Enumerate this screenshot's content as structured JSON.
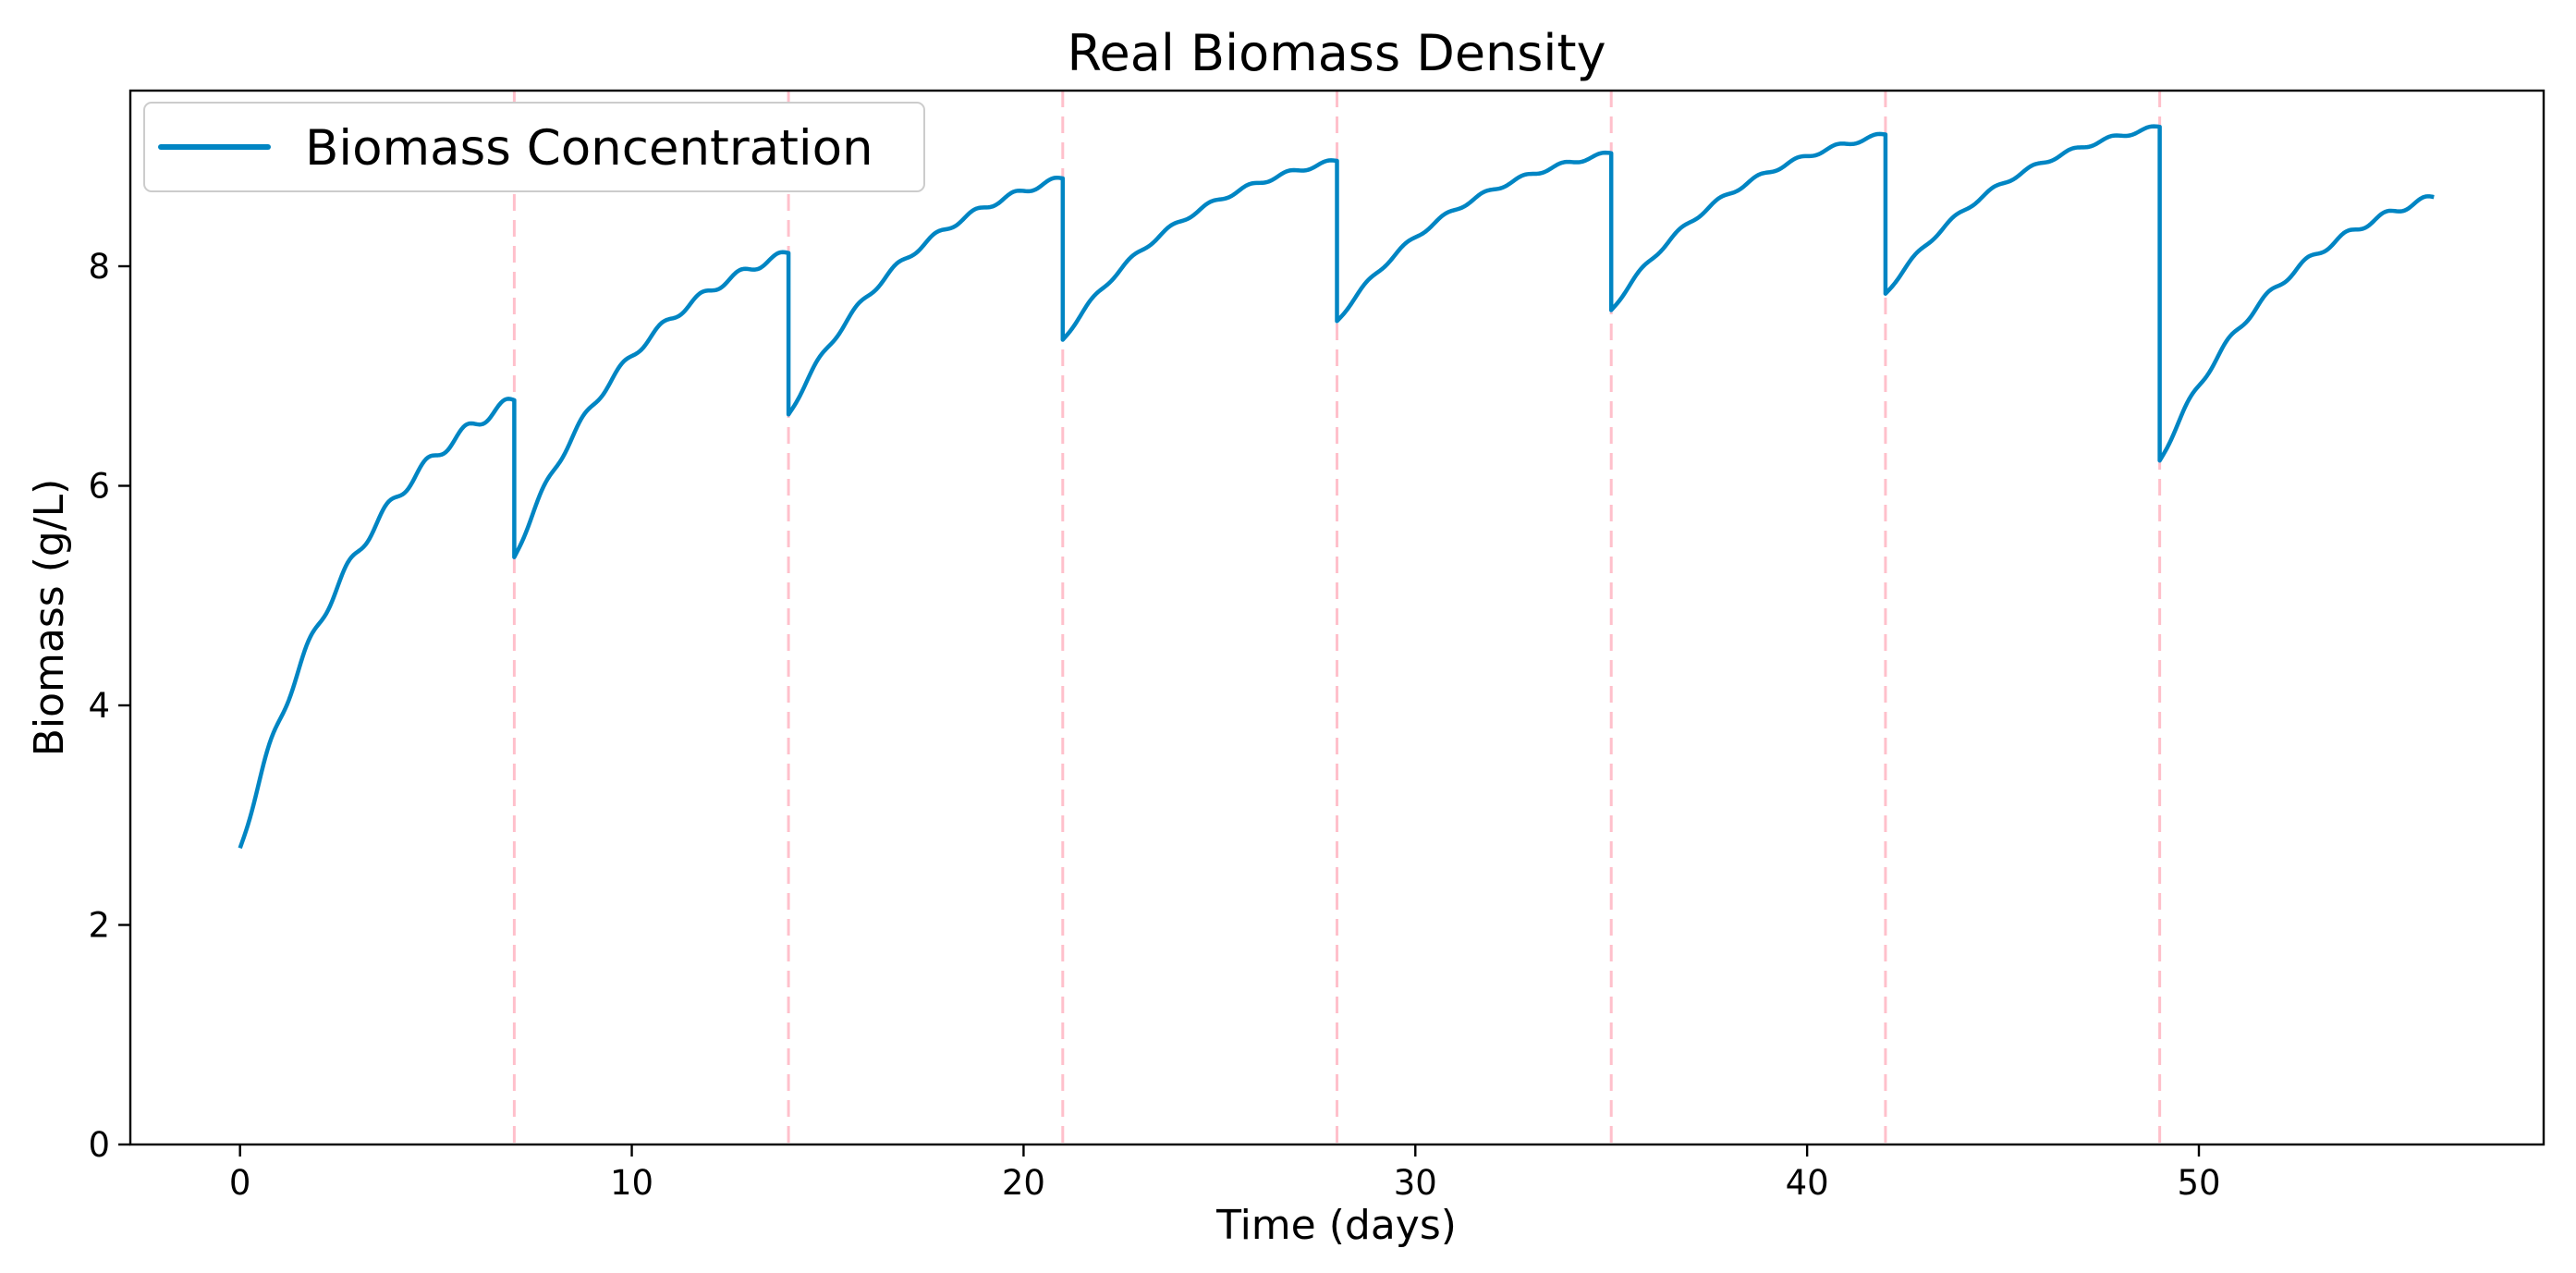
{
  "chart_data": {
    "type": "line",
    "title": "Real Biomass Density",
    "xlabel": "Time (days)",
    "ylabel": "Biomass (g/L)",
    "xlim": [
      -2.8,
      58.8
    ],
    "ylim": [
      0,
      9.6
    ],
    "xticks": [
      0,
      10,
      20,
      30,
      40,
      50
    ],
    "yticks": [
      0,
      2,
      4,
      6,
      8
    ],
    "grid": false,
    "legend_position": "top-left",
    "series": [
      {
        "name": "Biomass Concentration",
        "color": "#0085c3",
        "cycles": [
          {
            "start": 0,
            "end": 7,
            "y0": 2.7,
            "y1": 6.78
          },
          {
            "start": 7,
            "end": 14,
            "y0": 5.35,
            "y1": 8.12
          },
          {
            "start": 14,
            "end": 21,
            "y0": 6.65,
            "y1": 8.8
          },
          {
            "start": 21,
            "end": 28,
            "y0": 7.33,
            "y1": 8.96
          },
          {
            "start": 28,
            "end": 35,
            "y0": 7.5,
            "y1": 9.03
          },
          {
            "start": 35,
            "end": 42,
            "y0": 7.6,
            "y1": 9.2
          },
          {
            "start": 42,
            "end": 49,
            "y0": 7.75,
            "y1": 9.27
          },
          {
            "start": 49,
            "end": 56,
            "y0": 6.23,
            "y1": 8.63
          }
        ]
      }
    ],
    "harvest_markers": {
      "color": "#ffc0cb",
      "style": "dashed",
      "x": [
        7,
        14,
        21,
        28,
        35,
        42,
        49
      ]
    }
  }
}
